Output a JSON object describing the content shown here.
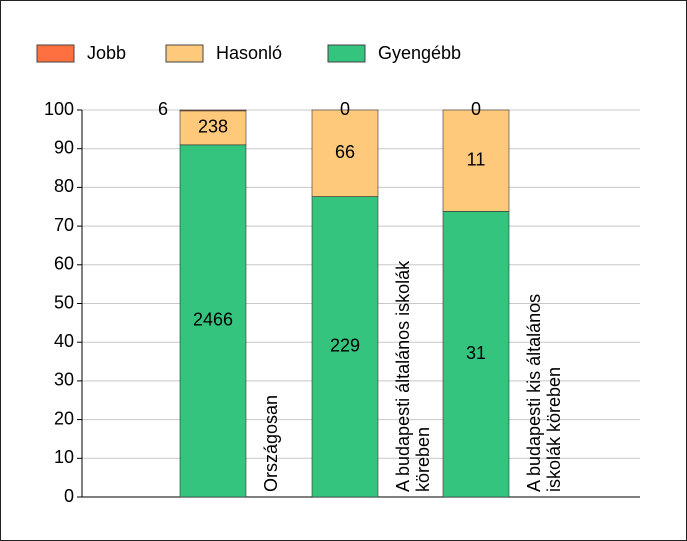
{
  "chart_data": {
    "type": "bar",
    "stacking": "percent",
    "categories": [
      [
        "Országosan"
      ],
      [
        "A budapesti általános iskolák",
        "köreben"
      ],
      [
        "A budapesti kis általános",
        "iskolák köreben"
      ]
    ],
    "series": [
      {
        "name": "Gyengébb",
        "color": "#34c47e",
        "values": [
          2466,
          229,
          31
        ]
      },
      {
        "name": "Hasonló",
        "color": "#ffc97c",
        "values": [
          238,
          66,
          11
        ]
      },
      {
        "name": "Jobb",
        "color": "#ff7040",
        "values": [
          6,
          0,
          0
        ]
      }
    ],
    "legend_order": [
      2,
      1,
      0
    ],
    "ylim": [
      0,
      100
    ],
    "yticks": [
      0,
      10,
      20,
      30,
      40,
      50,
      60,
      70,
      80,
      90,
      100
    ],
    "grid": true
  }
}
